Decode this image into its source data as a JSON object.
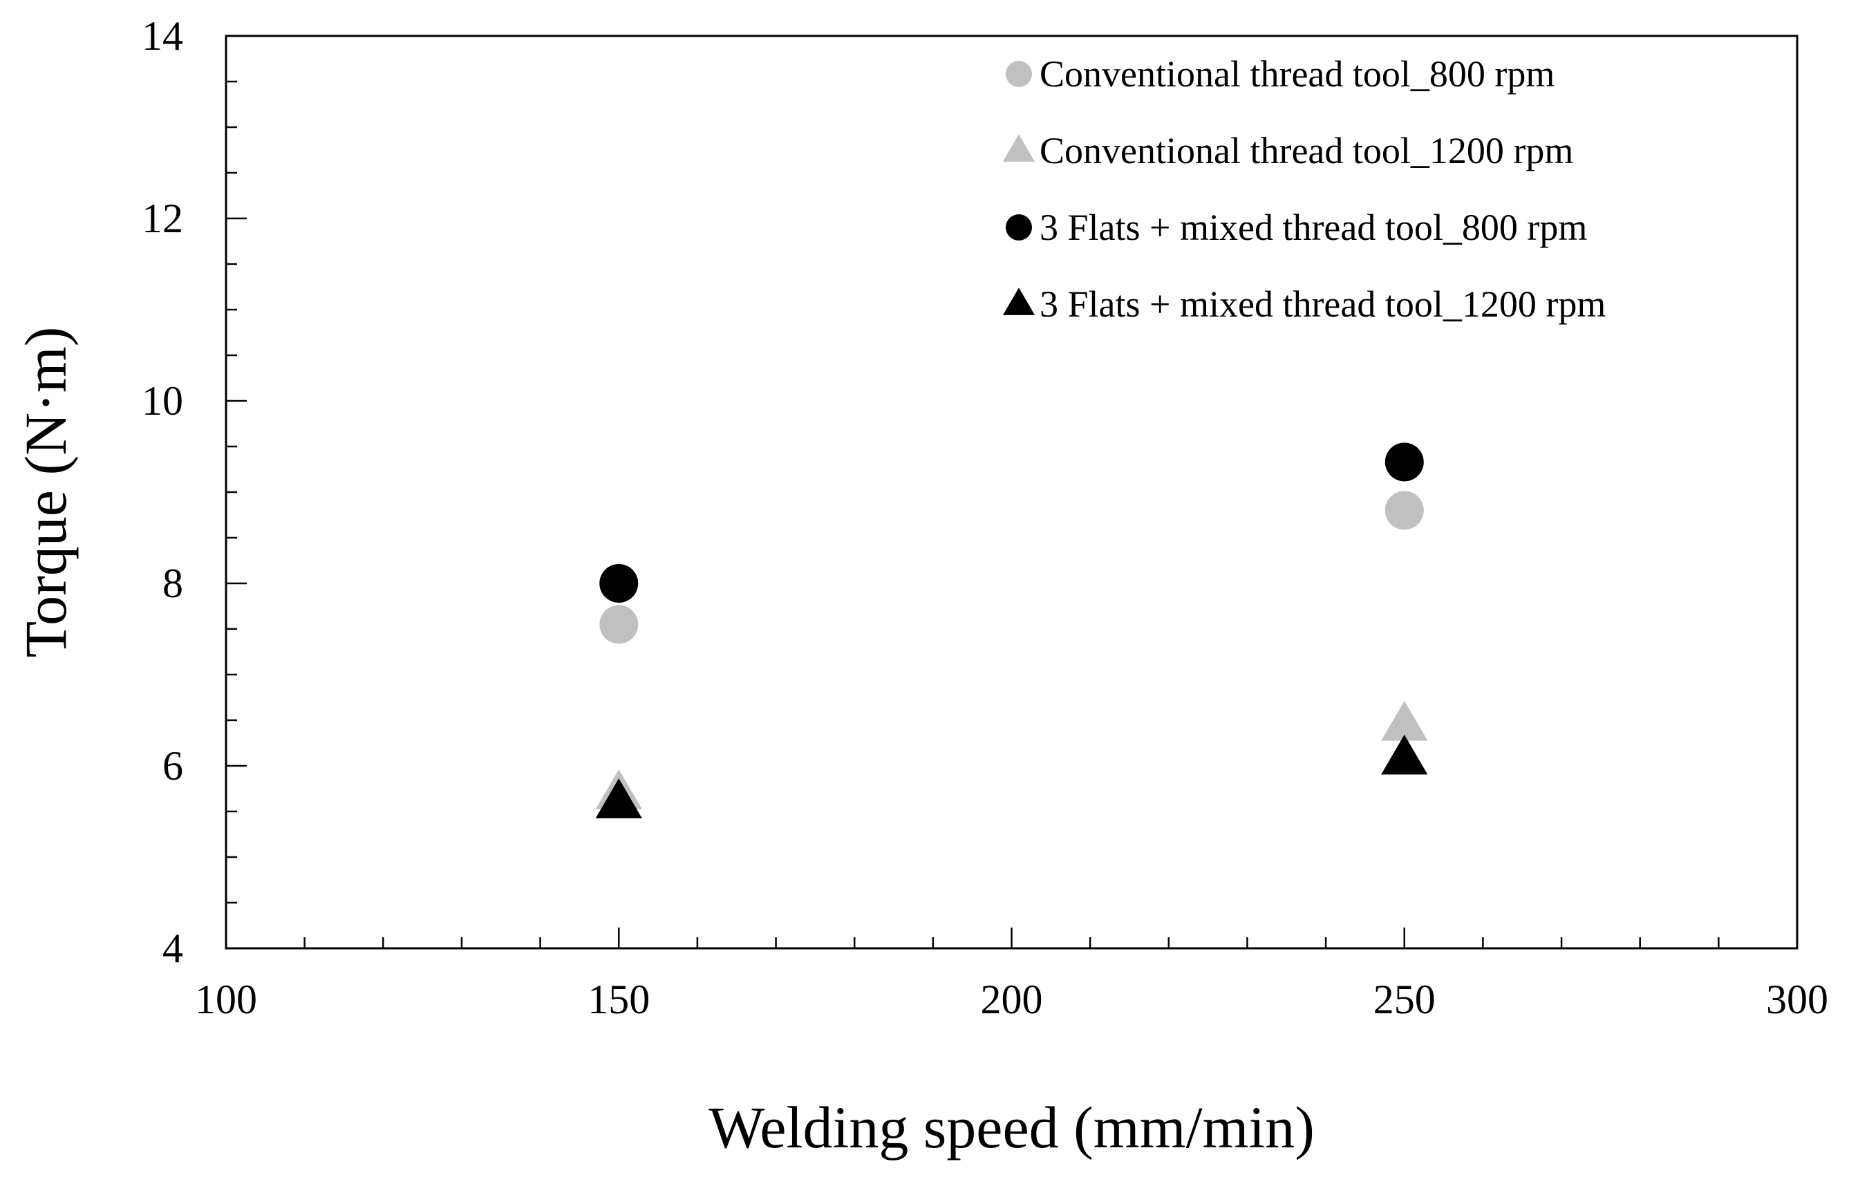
{
  "chart_data": {
    "type": "scatter",
    "title": "",
    "xlabel": "Welding speed (mm/min)",
    "ylabel": "Torque (N·m)",
    "xlim": [
      100,
      300
    ],
    "ylim": [
      4,
      14
    ],
    "x_major_ticks": [
      100,
      150,
      200,
      250,
      300
    ],
    "y_major_ticks": [
      4,
      6,
      8,
      10,
      12,
      14
    ],
    "x_minor_step": 10,
    "y_minor_step": 0.5,
    "grid": false,
    "legend_position": "top-right",
    "series": [
      {
        "name": "Conventional thread tool_800 rpm",
        "marker": "circle",
        "color": "#c0c0c0",
        "x": [
          150,
          250
        ],
        "y": [
          7.55,
          8.8
        ]
      },
      {
        "name": "Conventional thread tool_1200 rpm",
        "marker": "triangle",
        "color": "#c0c0c0",
        "x": [
          150,
          250
        ],
        "y": [
          5.7,
          6.45
        ]
      },
      {
        "name": "3 Flats + mixed thread tool_800 rpm",
        "marker": "circle",
        "color": "#000000",
        "x": [
          150,
          250
        ],
        "y": [
          8.0,
          9.33
        ]
      },
      {
        "name": "3 Flats + mixed thread tool_1200 rpm",
        "marker": "triangle",
        "color": "#000000",
        "x": [
          150,
          250
        ],
        "y": [
          5.6,
          6.08
        ]
      }
    ]
  }
}
